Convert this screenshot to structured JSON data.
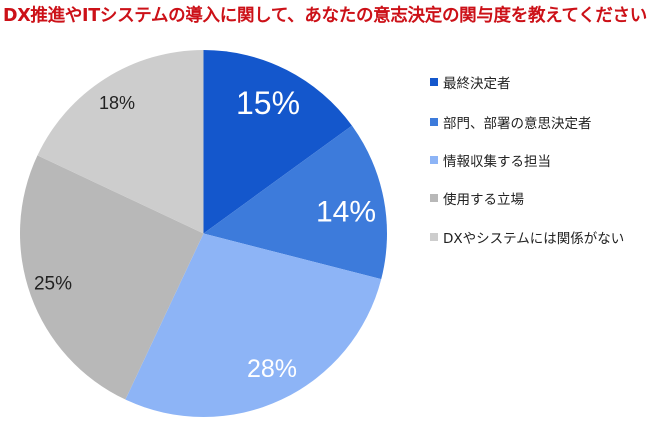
{
  "title": "DX推進やITシステムの導入に関して、あなたの意志決定の関与度を教えてください",
  "colors": {
    "title": "#cc1118",
    "background": "#ffffff"
  },
  "chart_data": {
    "type": "pie",
    "title": "DX推進やITシステムの導入に関して、あなたの意志決定の関与度を教えてください",
    "categories": [
      "最終決定者",
      "部門、部署の意思決定者",
      "情報収集する担当",
      "使用する立場",
      "DXやシステムには関係がない"
    ],
    "values": [
      15,
      14,
      28,
      25,
      18
    ],
    "labels": [
      "15%",
      "14%",
      "28%",
      "25%",
      "18%"
    ],
    "colors": [
      "#1457cc",
      "#3d7bdb",
      "#8db4f6",
      "#b8b8b8",
      "#cdcdcd"
    ],
    "label_colors": [
      "#ffffff",
      "#ffffff",
      "#ffffff",
      "#222222",
      "#222222"
    ],
    "start_angle_deg": 0,
    "direction": "clockwise",
    "legend_position": "right"
  },
  "legend": {
    "items": [
      {
        "label": "最終決定者",
        "color": "#1457cc"
      },
      {
        "label": "部門、部署の意思決定者",
        "color": "#3d7bdb"
      },
      {
        "label": "情報収集する担当",
        "color": "#8db4f6"
      },
      {
        "label": "使用する立場",
        "color": "#b8b8b8"
      },
      {
        "label": "DXやシステムには関係がない",
        "color": "#cdcdcd"
      }
    ]
  }
}
